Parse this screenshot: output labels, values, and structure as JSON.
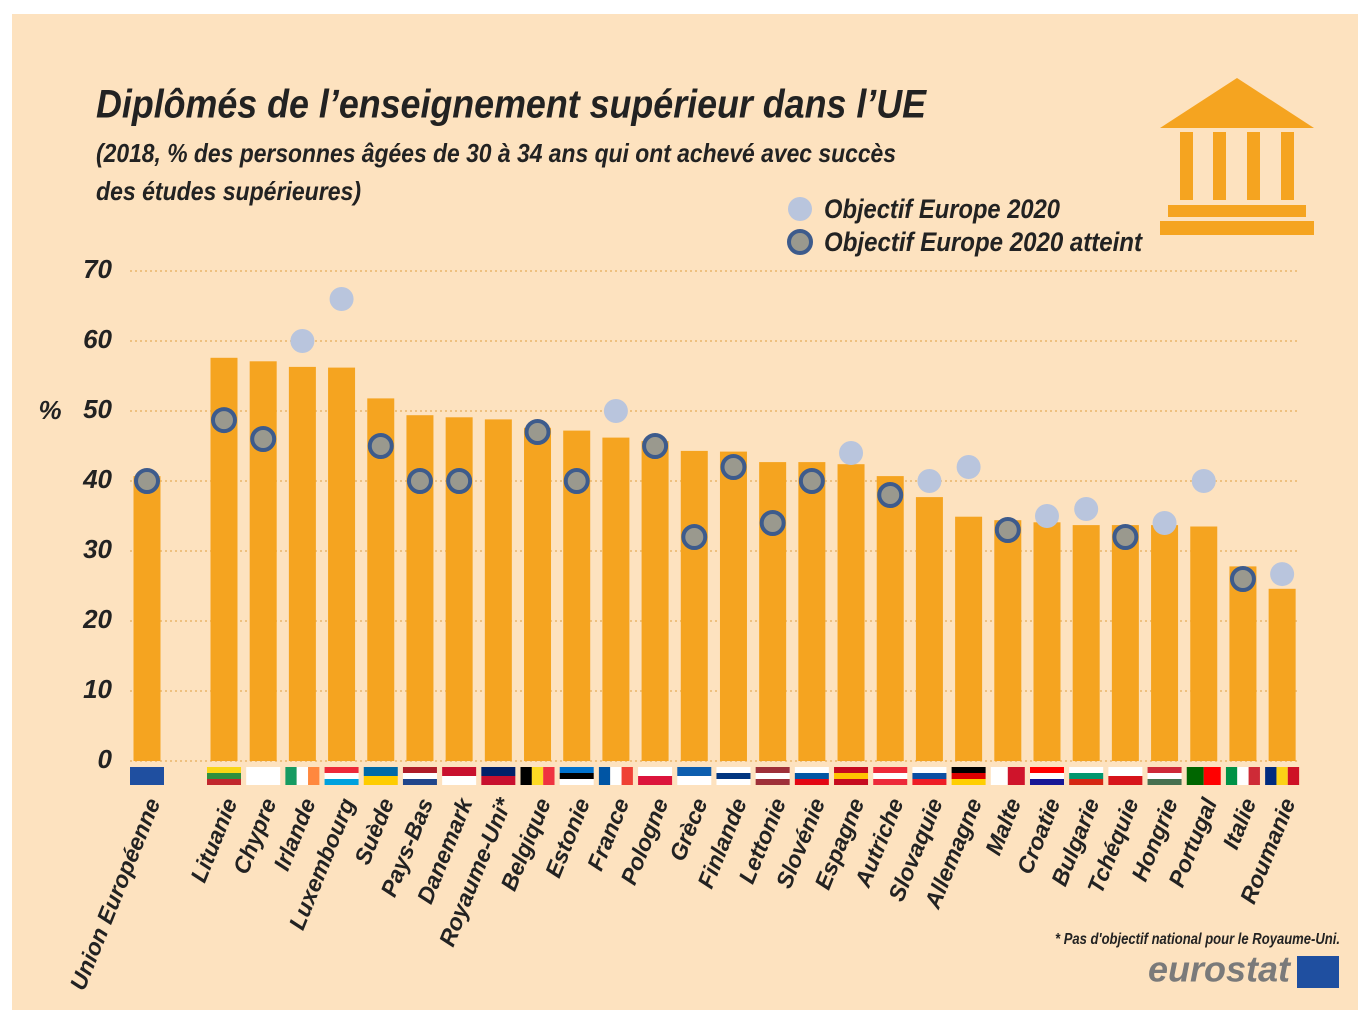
{
  "chart_data": {
    "type": "bar",
    "title": "Diplômés de l’enseignement supérieur dans l’UE",
    "subtitle": [
      "(2018, % des personnes âgées de 30 à 34 ans qui ont achevé avec succès",
      "des études supérieures)"
    ],
    "y_label": "%",
    "categories": [
      "Union Européenne",
      "Lituanie",
      "Chypre",
      "Irlande",
      "Luxembourg",
      "Suède",
      "Pays-Bas",
      "Danemark",
      "Royaume-Uni*",
      "Belgique",
      "Estonie",
      "France",
      "Pologne",
      "Grèce",
      "Finlande",
      "Lettonie",
      "Slovénie",
      "Espagne",
      "Autriche",
      "Slovaquie",
      "Allemagne",
      "Malte",
      "Croatie",
      "Bulgarie",
      "Tchéquie",
      "Hongrie",
      "Portugal",
      "Italie",
      "Roumanie"
    ],
    "values": [
      40.7,
      57.6,
      57.1,
      56.3,
      56.2,
      51.8,
      49.4,
      49.1,
      48.8,
      47.6,
      47.2,
      46.2,
      45.7,
      44.3,
      44.2,
      42.7,
      42.7,
      42.4,
      40.7,
      37.7,
      34.9,
      34.4,
      34.1,
      33.7,
      33.7,
      33.7,
      33.5,
      27.8,
      24.6
    ],
    "color": "#f5a420",
    "series": [
      {
        "name": "Objectif Europe 2020",
        "color": "#b9c5dd",
        "style": "target",
        "values": [
          null,
          null,
          null,
          60,
          66,
          null,
          null,
          null,
          null,
          null,
          null,
          50,
          null,
          null,
          null,
          null,
          null,
          44,
          null,
          40,
          42,
          null,
          35,
          36,
          null,
          34,
          40,
          null,
          26.7
        ]
      },
      {
        "name": "Objectif Europe 2020 atteint",
        "color": "#9a998e",
        "stroke": "#3d5b8c",
        "style": "attained",
        "values": [
          40,
          48.7,
          46,
          null,
          null,
          45,
          40,
          40,
          null,
          47,
          40,
          null,
          45,
          32,
          42,
          34,
          40,
          null,
          38,
          null,
          null,
          33,
          null,
          null,
          32,
          null,
          null,
          26,
          null
        ]
      }
    ],
    "ylim": [
      0,
      70
    ],
    "yticks": [
      0,
      10,
      20,
      30,
      40,
      50,
      60,
      70
    ],
    "grid": true,
    "footnote": "* Pas d'objectif national pour le Royaume-Uni.",
    "source": "eurostat"
  }
}
